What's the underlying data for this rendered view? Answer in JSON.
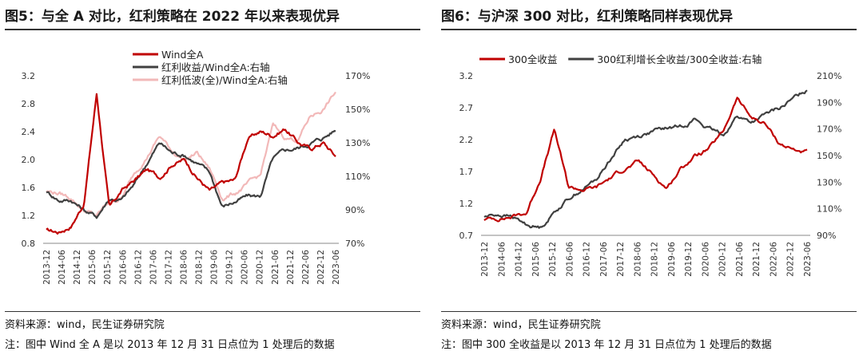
{
  "panels": [
    {
      "title": "图5：与全 A 对比，红利策略在 2022 年以来表现优异",
      "source": "资料来源：wind，民生证券研究院",
      "note": "注：图中 Wind 全 A 是以 2013 年 12 月 31 日点位为 1 处理后的数据"
    },
    {
      "title": "图6：与沪深 300 对比，红利策略同样表现优异",
      "source": "资料来源：wind，民生证券研究院",
      "note": "注：图中 300 全收益是以 2013 年 12 月 31 日点位为 1 处理后的数据"
    }
  ],
  "chart_data": [
    {
      "type": "line",
      "x_tick_labels": [
        "2013-12",
        "2014-06",
        "2014-12",
        "2015-06",
        "2015-12",
        "2016-06",
        "2016-12",
        "2017-06",
        "2017-12",
        "2018-06",
        "2018-12",
        "2019-06",
        "2019-12",
        "2020-06",
        "2020-12",
        "2021-06",
        "2021-12",
        "2022-06",
        "2022-12",
        "2023-06"
      ],
      "y_left": {
        "ylim": [
          0.8,
          3.2
        ],
        "ticks": [
          "0.8",
          "1.2",
          "1.6",
          "2.0",
          "2.4",
          "2.8",
          "3.2"
        ]
      },
      "y_right": {
        "ylim": [
          70,
          170
        ],
        "ticks": [
          "70%",
          "90%",
          "110%",
          "130%",
          "150%",
          "170%"
        ]
      },
      "legend_placement": "top-center",
      "grid": false,
      "series": [
        {
          "name": "Wind全A",
          "axis": "left",
          "color": "#c00000",
          "values": [
            0.98,
            0.96,
            1.06,
            1.38,
            2.95,
            1.3,
            1.55,
            1.7,
            1.85,
            1.75,
            1.95,
            2.0,
            1.75,
            1.55,
            1.65,
            1.7,
            2.3,
            2.4,
            2.35,
            2.45,
            2.25,
            2.15,
            2.25,
            2.05
          ]
        },
        {
          "name": "红利收益/Wind全A:右轴",
          "axis": "right",
          "color": "#404040",
          "values": [
            101,
            96,
            96,
            90,
            86,
            97,
            96,
            105,
            118,
            130,
            124,
            123,
            118,
            112,
            92,
            95,
            98,
            98,
            120,
            125,
            127,
            130,
            133,
            138
          ]
        },
        {
          "name": "红利低波(全)/Wind全A:右轴",
          "axis": "right",
          "color": "#f2b8b8",
          "values": [
            101,
            100,
            97,
            90,
            86,
            95,
            97,
            112,
            122,
            134,
            125,
            120,
            124,
            114,
            97,
            100,
            105,
            110,
            140,
            133,
            132,
            146,
            150,
            160
          ]
        }
      ]
    },
    {
      "type": "line",
      "x_tick_labels": [
        "2013-12",
        "2014-06",
        "2014-12",
        "2015-06",
        "2015-12",
        "2016-06",
        "2016-12",
        "2017-06",
        "2017-12",
        "2018-06",
        "2018-12",
        "2019-06",
        "2019-12",
        "2020-06",
        "2020-12",
        "2021-06",
        "2021-12",
        "2022-06",
        "2022-12",
        "2023-06"
      ],
      "y_left": {
        "ylim": [
          0.7,
          3.2
        ],
        "ticks": [
          "0.7",
          "1.2",
          "1.7",
          "2.2",
          "2.7",
          "3.2"
        ]
      },
      "y_right": {
        "ylim": [
          90,
          210
        ],
        "ticks": [
          "90%",
          "110%",
          "130%",
          "150%",
          "170%",
          "190%",
          "210%"
        ]
      },
      "legend_placement": "top",
      "grid": false,
      "series": [
        {
          "name": "300全收益",
          "axis": "left",
          "color": "#c00000",
          "values": [
            0.95,
            0.97,
            1.0,
            1.05,
            1.6,
            2.35,
            1.45,
            1.42,
            1.45,
            1.6,
            1.75,
            1.85,
            1.65,
            1.45,
            1.75,
            1.95,
            2.05,
            2.3,
            2.85,
            2.55,
            2.45,
            2.15,
            2.05,
            2.0
          ]
        },
        {
          "name": "300红利增长全收益/300全收益:右轴",
          "axis": "right",
          "color": "#404040",
          "values": [
            104,
            106,
            104,
            98,
            96,
            108,
            118,
            125,
            132,
            148,
            162,
            165,
            168,
            170,
            172,
            178,
            170,
            165,
            180,
            175,
            180,
            185,
            192,
            200
          ]
        }
      ]
    }
  ]
}
